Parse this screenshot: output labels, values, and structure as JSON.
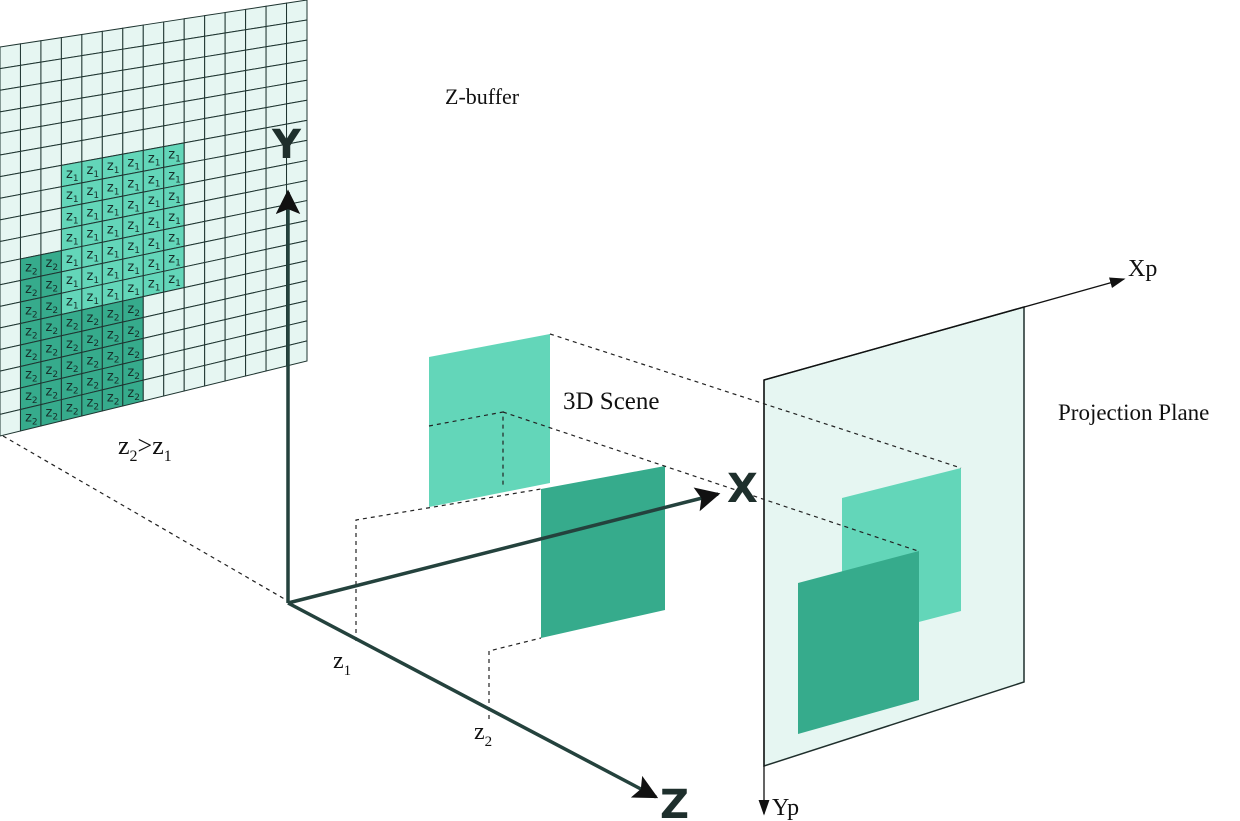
{
  "labels": {
    "zbuffer": "Z-buffer",
    "scene": "3D Scene",
    "projection_plane": "Projection Plane",
    "axis_x": "X",
    "axis_y": "Y",
    "axis_z": "Z",
    "axis_xp": "Xp",
    "axis_yp": "Yp",
    "depth_1": "z",
    "depth_1_sub": "1",
    "depth_2": "z",
    "depth_2_sub": "2",
    "compare_a": "z",
    "compare_a_sub": "2",
    "compare_op": ">",
    "compare_b": "z",
    "compare_b_sub": "1"
  },
  "zbuffer": {
    "columns": 15,
    "rows": 18,
    "cell_symbol": "z",
    "near_depth": "1",
    "far_depth": "2",
    "near_region_rows": [
      6,
      12
    ],
    "near_region_cols": [
      3,
      8
    ],
    "far_region_rows": [
      10,
      17
    ],
    "far_region_cols": [
      1,
      6
    ]
  },
  "colors": {
    "grid_bg": "#e6f6f2",
    "grid_line": "#1f3531",
    "near_fill": "#63d6b9",
    "far_fill": "#36ab8c",
    "plane_fill": "#e6f6f2",
    "axis": "#24423d"
  }
}
